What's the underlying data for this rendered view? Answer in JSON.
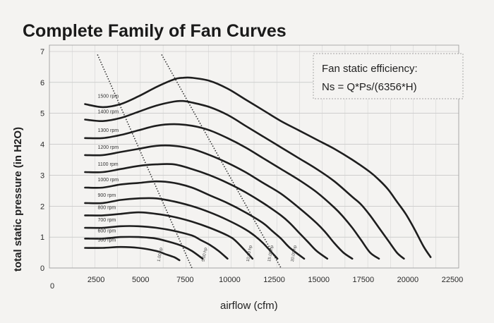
{
  "chart_data": {
    "type": "line",
    "title": "Complete Family of Fan Curves",
    "xlabel": "airflow (cfm)",
    "ylabel": "total static pressure (in H2O)",
    "xlim": [
      0,
      22500
    ],
    "ylim": [
      0,
      7
    ],
    "x_ticks": [
      "0",
      "2500",
      "5000",
      "7500",
      "10000",
      "12500",
      "15000",
      "17500",
      "20000",
      "22500"
    ],
    "y_ticks": [
      "0",
      "1",
      "2",
      "3",
      "4",
      "5",
      "6",
      "7"
    ],
    "grid": true,
    "annotation": {
      "line1": "Fan static efficiency:",
      "line2": "Ns   = Q*Ps/(6356*H)"
    },
    "series": [
      {
        "name": "1500 rpm",
        "x": [
          2000,
          3000,
          4000,
          5000,
          6000,
          7000,
          7500,
          8000,
          9000,
          10000,
          11000,
          12000,
          13000,
          14000,
          15000,
          16000,
          17000,
          18000,
          18500,
          19000,
          19500,
          20000,
          20500,
          21000,
          21400
        ],
        "y": [
          5.3,
          5.2,
          5.3,
          5.55,
          5.85,
          6.1,
          6.15,
          6.15,
          6.05,
          5.8,
          5.45,
          5.1,
          4.75,
          4.45,
          4.15,
          3.85,
          3.5,
          3.1,
          2.85,
          2.55,
          2.15,
          1.75,
          1.25,
          0.7,
          0.35
        ]
      },
      {
        "name": "1400 rpm",
        "x": [
          2000,
          3000,
          4000,
          5000,
          6000,
          7000,
          7500,
          8000,
          9000,
          10000,
          11000,
          12000,
          13000,
          14000,
          15000,
          16000,
          17000,
          17500,
          18000,
          18500,
          19000,
          19500,
          19900
        ],
        "y": [
          4.8,
          4.75,
          4.85,
          5.05,
          5.25,
          5.38,
          5.4,
          5.35,
          5.2,
          4.95,
          4.6,
          4.25,
          3.9,
          3.55,
          3.2,
          2.8,
          2.3,
          2.05,
          1.7,
          1.3,
          0.9,
          0.5,
          0.3
        ]
      },
      {
        "name": "1300 rpm",
        "x": [
          2000,
          3000,
          4000,
          5000,
          6000,
          7000,
          8000,
          9000,
          10000,
          11000,
          12000,
          13000,
          14000,
          15000,
          16000,
          16500,
          17000,
          17500,
          18000,
          18500
        ],
        "y": [
          4.2,
          4.2,
          4.3,
          4.45,
          4.6,
          4.65,
          4.6,
          4.45,
          4.2,
          3.9,
          3.55,
          3.2,
          2.85,
          2.45,
          1.95,
          1.65,
          1.3,
          0.9,
          0.5,
          0.3
        ]
      },
      {
        "name": "1200 rpm",
        "x": [
          2000,
          3000,
          4000,
          5000,
          6000,
          7000,
          8000,
          9000,
          10000,
          11000,
          12000,
          13000,
          14000,
          15000,
          15500,
          16000,
          16500,
          17000
        ],
        "y": [
          3.65,
          3.65,
          3.75,
          3.85,
          3.95,
          3.95,
          3.85,
          3.65,
          3.4,
          3.1,
          2.75,
          2.4,
          1.95,
          1.45,
          1.15,
          0.8,
          0.5,
          0.3
        ]
      },
      {
        "name": "1100 rpm",
        "x": [
          2000,
          3000,
          4000,
          5000,
          6000,
          7000,
          8000,
          9000,
          10000,
          11000,
          12000,
          13000,
          13500,
          14000,
          14500,
          15000,
          15600
        ],
        "y": [
          3.1,
          3.1,
          3.2,
          3.3,
          3.35,
          3.35,
          3.2,
          3.0,
          2.75,
          2.45,
          2.1,
          1.7,
          1.45,
          1.15,
          0.85,
          0.55,
          0.3
        ]
      },
      {
        "name": "1000 rpm",
        "x": [
          2000,
          3000,
          4000,
          5000,
          6000,
          7000,
          8000,
          9000,
          10000,
          11000,
          12000,
          12500,
          13000,
          13500,
          14300
        ],
        "y": [
          2.6,
          2.6,
          2.7,
          2.75,
          2.8,
          2.75,
          2.6,
          2.35,
          2.1,
          1.8,
          1.45,
          1.2,
          0.95,
          0.65,
          0.3
        ]
      },
      {
        "name": "900 rpm",
        "x": [
          2000,
          3000,
          4000,
          5000,
          6000,
          7000,
          8000,
          9000,
          10000,
          11000,
          11500,
          12000,
          12800
        ],
        "y": [
          2.1,
          2.1,
          2.2,
          2.25,
          2.25,
          2.15,
          2.0,
          1.8,
          1.55,
          1.25,
          1.05,
          0.8,
          0.3
        ]
      },
      {
        "name": "800 rpm",
        "x": [
          2000,
          3000,
          4000,
          5000,
          6000,
          7000,
          8000,
          9000,
          10000,
          10500,
          11400
        ],
        "y": [
          1.7,
          1.7,
          1.75,
          1.8,
          1.75,
          1.65,
          1.5,
          1.3,
          1.05,
          0.85,
          0.3
        ]
      },
      {
        "name": "700 rpm",
        "x": [
          2000,
          3000,
          4000,
          5000,
          6000,
          7000,
          8000,
          8500,
          9000,
          9500,
          10000
        ],
        "y": [
          1.3,
          1.3,
          1.35,
          1.35,
          1.3,
          1.2,
          1.05,
          0.9,
          0.75,
          0.55,
          0.3
        ]
      },
      {
        "name": "600 rpm",
        "x": [
          2000,
          3000,
          4000,
          5000,
          6000,
          7000,
          7500,
          8000,
          8600
        ],
        "y": [
          0.95,
          0.95,
          1.0,
          1.0,
          0.95,
          0.8,
          0.7,
          0.55,
          0.3
        ]
      },
      {
        "name": "500 rpm",
        "x": [
          2000,
          3000,
          4000,
          5000,
          6000,
          6500,
          7000,
          7300
        ],
        "y": [
          0.65,
          0.65,
          0.68,
          0.65,
          0.55,
          0.45,
          0.35,
          0.25
        ]
      }
    ],
    "power_lines": [
      {
        "x": [
          2700,
          8000
        ],
        "y": [
          6.9,
          0.0
        ]
      },
      {
        "x": [
          6300,
          13000
        ],
        "y": [
          6.9,
          0.0
        ]
      }
    ],
    "power_labels": [
      "1.00 hp",
      "5.00 hp",
      "10.00 hp",
      "15.00 hp",
      "20.00 hp"
    ]
  }
}
